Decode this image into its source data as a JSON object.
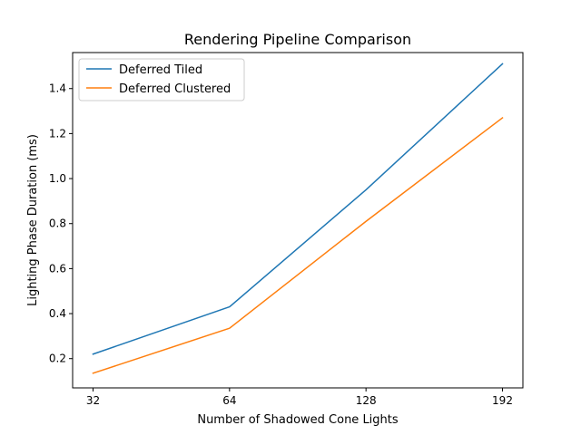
{
  "chart_data": {
    "type": "line",
    "title": "Rendering Pipeline Comparison",
    "xlabel": "Number of Shadowed Cone Lights",
    "ylabel": "Lighting Phase Duration (ms)",
    "x": [
      32,
      64,
      128,
      192
    ],
    "x_tick_labels": [
      "32",
      "64",
      "128",
      "192"
    ],
    "ylim": [
      0.07,
      1.56
    ],
    "y_ticks": [
      0.2,
      0.4,
      0.6,
      0.8,
      1.0,
      1.2,
      1.4
    ],
    "y_tick_labels": [
      "0.2",
      "0.4",
      "0.6",
      "0.8",
      "1.0",
      "1.2",
      "1.4"
    ],
    "grid": false,
    "legend_position": "upper-left",
    "series": [
      {
        "name": "Deferred Tiled",
        "color": "#1f77b4",
        "values": [
          0.22,
          0.43,
          0.95,
          1.51
        ]
      },
      {
        "name": "Deferred Clustered",
        "color": "#ff7f0e",
        "values": [
          0.135,
          0.335,
          0.81,
          1.27
        ]
      }
    ]
  }
}
